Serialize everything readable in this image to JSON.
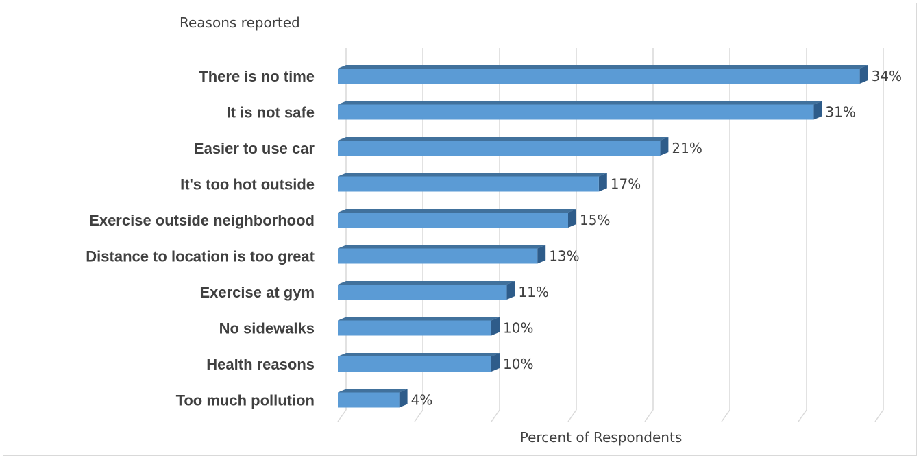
{
  "chart_data": {
    "type": "bar",
    "orientation": "horizontal",
    "style": "3d",
    "ylabel": "Reasons reported",
    "xlabel": "Percent of Respondents",
    "categories": [
      "There is no time",
      "It is not safe",
      "Easier to use car",
      "It's too hot outside",
      "Exercise outside neighborhood",
      "Distance to location is too great",
      "Exercise at gym",
      "No sidewalks",
      "Health reasons",
      "Too much pollution"
    ],
    "values": [
      34,
      31,
      21,
      17,
      15,
      13,
      11,
      10,
      10,
      4
    ],
    "value_labels": [
      "34%",
      "31%",
      "21%",
      "17%",
      "15%",
      "13%",
      "11%",
      "10%",
      "10%",
      "4%"
    ],
    "xlim": [
      0,
      35
    ],
    "grid": true,
    "legend": "none",
    "colors": {
      "bar_front": "#5b9bd5",
      "bar_top": "#41719c",
      "bar_side": "#2e5c8a",
      "grid": "#d9d9d9",
      "text": "#404040"
    }
  }
}
